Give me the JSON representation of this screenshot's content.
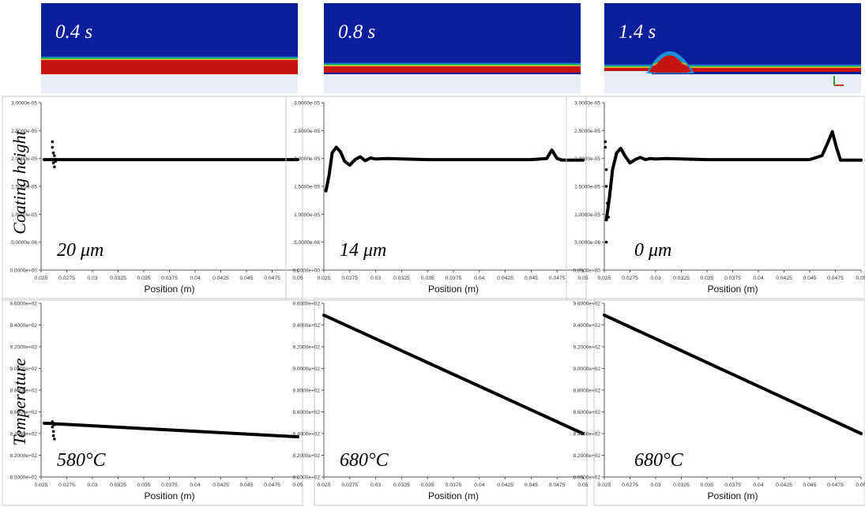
{
  "row_labels": {
    "coating": "Coating height",
    "temperature": "Temperature"
  },
  "colors": {
    "field_blue": "#0c1e9c",
    "field_red": "#c8120e",
    "band_green": "#18b23c",
    "band_yellow": "#e6dc2a",
    "substrate": "#e9eef6",
    "curve": "#000000"
  },
  "panels": [
    {
      "time": "0.4 s",
      "thickness": "20 μm",
      "temperature": "580°C",
      "droplet": false
    },
    {
      "time": "0.8 s",
      "thickness": "14 μm",
      "temperature": "680°C",
      "droplet": false
    },
    {
      "time": "1.4 s",
      "thickness": "0 μm",
      "temperature": "680°C",
      "droplet": true
    }
  ],
  "chart_data": [
    {
      "type": "line",
      "title": "0.4 s",
      "xlabel": "Position (m)",
      "ylabel": "",
      "annotation": "20 μm",
      "xlim": [
        0.025,
        0.05
      ],
      "ylim": [
        0,
        3e-05
      ],
      "xticks": [
        "0.025",
        "0.0275",
        "0.03",
        "0.0325",
        "0.035",
        "0.0375",
        "0.04",
        "0.0425",
        "0.045",
        "0.0475",
        "0.05"
      ],
      "yticks": [
        "0.0000e+00",
        "5.0000e-06",
        "1.0000e-05",
        "1.5000e-05",
        "2.0000e-05",
        "2.5000e-05",
        "3.0000e-05"
      ],
      "x": [
        0.0253,
        0.03,
        0.035,
        0.04,
        0.045,
        0.05
      ],
      "y": [
        1.98e-05,
        1.98e-05,
        1.98e-05,
        1.98e-05,
        1.98e-05,
        1.98e-05
      ],
      "scatter_x": [
        0.0261,
        0.0261,
        0.0262,
        0.0262,
        0.0263,
        0.0263,
        0.0264
      ],
      "scatter_y": [
        2.3e-05,
        2.2e-05,
        2.1e-05,
        1.92e-05,
        1.85e-05,
        2.05e-05,
        1.95e-05
      ]
    },
    {
      "type": "line",
      "title": "0.8 s",
      "xlabel": "Position (m)",
      "ylabel": "",
      "annotation": "14 μm",
      "xlim": [
        0.025,
        0.05
      ],
      "ylim": [
        0,
        3e-05
      ],
      "xticks": [
        "0.025",
        "0.0275",
        "0.03",
        "0.0325",
        "0.035",
        "0.0375",
        "0.04",
        "0.0425",
        "0.045",
        "0.0475",
        "0.05"
      ],
      "yticks": [
        "0.0000e+00",
        "5.0000e-06",
        "1.0000e-05",
        "1.5000e-05",
        "2.0000e-05",
        "2.5000e-05",
        "3.0000e-05"
      ],
      "x": [
        0.0252,
        0.0255,
        0.0258,
        0.0262,
        0.0266,
        0.027,
        0.0275,
        0.028,
        0.0285,
        0.029,
        0.0295,
        0.03,
        0.031,
        0.035,
        0.04,
        0.045,
        0.0465,
        0.047,
        0.0475,
        0.048,
        0.049,
        0.05
      ],
      "y": [
        1.42e-05,
        1.7e-05,
        2.1e-05,
        2.2e-05,
        2.12e-05,
        1.95e-05,
        1.88e-05,
        1.98e-05,
        2.03e-05,
        1.96e-05,
        2.01e-05,
        1.99e-05,
        2e-05,
        1.98e-05,
        1.98e-05,
        1.98e-05,
        2e-05,
        2.15e-05,
        2e-05,
        1.97e-05,
        1.97e-05,
        1.97e-05
      ],
      "scatter_x": [],
      "scatter_y": []
    },
    {
      "type": "line",
      "title": "1.4 s",
      "xlabel": "Position (m)",
      "ylabel": "",
      "annotation": "0 μm",
      "xlim": [
        0.025,
        0.05
      ],
      "ylim": [
        0,
        3e-05
      ],
      "xticks": [
        "0.025",
        "0.0275",
        "0.03",
        "0.0325",
        "0.035",
        "0.0375",
        "0.04",
        "0.0425",
        "0.045",
        "0.0475",
        "0.05"
      ],
      "yticks": [
        "0.0000e+00",
        "5.0000e-06",
        "1.0000e-05",
        "1.5000e-05",
        "2.0000e-05",
        "2.5000e-05",
        "3.0000e-05"
      ],
      "x": [
        0.0252,
        0.0255,
        0.0258,
        0.0262,
        0.0266,
        0.027,
        0.0275,
        0.028,
        0.0285,
        0.029,
        0.0295,
        0.03,
        0.031,
        0.035,
        0.04,
        0.045,
        0.0462,
        0.0468,
        0.0472,
        0.0476,
        0.048,
        0.049,
        0.05
      ],
      "y": [
        9e-06,
        1.3e-05,
        1.8e-05,
        2.1e-05,
        2.18e-05,
        2.05e-05,
        1.92e-05,
        1.98e-05,
        2.02e-05,
        1.98e-05,
        2e-05,
        1.99e-05,
        2e-05,
        1.98e-05,
        1.98e-05,
        1.98e-05,
        2.05e-05,
        2.3e-05,
        2.48e-05,
        2.2e-05,
        1.97e-05,
        1.97e-05,
        1.97e-05
      ],
      "scatter_x": [
        0.0251,
        0.0251,
        0.0252,
        0.0252,
        0.0253,
        0.0253,
        0.0254,
        0.0252
      ],
      "scatter_y": [
        2.3e-05,
        2.2e-05,
        1.8e-05,
        1.5e-05,
        1.2e-05,
        1.05e-05,
        9.5e-06,
        5e-06
      ]
    },
    {
      "type": "line",
      "title": "",
      "xlabel": "Position (m)",
      "ylabel": "",
      "annotation": "580°C",
      "xlim": [
        0.025,
        0.05
      ],
      "ylim": [
        800,
        960
      ],
      "xticks": [
        "0.025",
        "0.0275",
        "0.03",
        "0.0325",
        "0.035",
        "0.0375",
        "0.04",
        "0.0425",
        "0.045",
        "0.0475",
        "0.05"
      ],
      "yticks": [
        "8.0000e+02",
        "8.2000e+02",
        "8.4000e+02",
        "8.6000e+02",
        "8.8000e+02",
        "9.0000e+02",
        "9.2000e+02",
        "9.4000e+02",
        "9.6000e+02"
      ],
      "x": [
        0.0253,
        0.05
      ],
      "y": [
        849.5,
        837
      ],
      "scatter_x": [
        0.0261,
        0.0261,
        0.0262,
        0.0262,
        0.0263,
        0.0263
      ],
      "scatter_y": [
        851,
        846,
        842,
        838,
        835,
        848
      ]
    },
    {
      "type": "line",
      "title": "",
      "xlabel": "Position (m)",
      "ylabel": "",
      "annotation": "680°C",
      "xlim": [
        0.025,
        0.05
      ],
      "ylim": [
        800,
        960
      ],
      "xticks": [
        "0.025",
        "0.0275",
        "0.03",
        "0.0325",
        "0.035",
        "0.0375",
        "0.04",
        "0.0425",
        "0.045",
        "0.0475",
        "0.05"
      ],
      "yticks": [
        "8.0000e+02",
        "8.2000e+02",
        "8.4000e+02",
        "8.6000e+02",
        "8.8000e+02",
        "9.0000e+02",
        "9.2000e+02",
        "9.4000e+02",
        "9.6000e+02"
      ],
      "x": [
        0.025,
        0.05
      ],
      "y": [
        949,
        840
      ],
      "scatter_x": [],
      "scatter_y": []
    },
    {
      "type": "line",
      "title": "",
      "xlabel": "Position (m)",
      "ylabel": "",
      "annotation": "680°C",
      "xlim": [
        0.025,
        0.05
      ],
      "ylim": [
        800,
        960
      ],
      "xticks": [
        "0.025",
        "0.0275",
        "0.03",
        "0.0325",
        "0.035",
        "0.0375",
        "0.04",
        "0.0425",
        "0.045",
        "0.0475",
        "0.05"
      ],
      "yticks": [
        "8.0000e+02",
        "8.2000e+02",
        "8.4000e+02",
        "8.6000e+02",
        "8.8000e+02",
        "9.0000e+02",
        "9.2000e+02",
        "9.4000e+02",
        "9.6000e+02"
      ],
      "x": [
        0.025,
        0.05
      ],
      "y": [
        949,
        840
      ],
      "scatter_x": [],
      "scatter_y": []
    }
  ]
}
